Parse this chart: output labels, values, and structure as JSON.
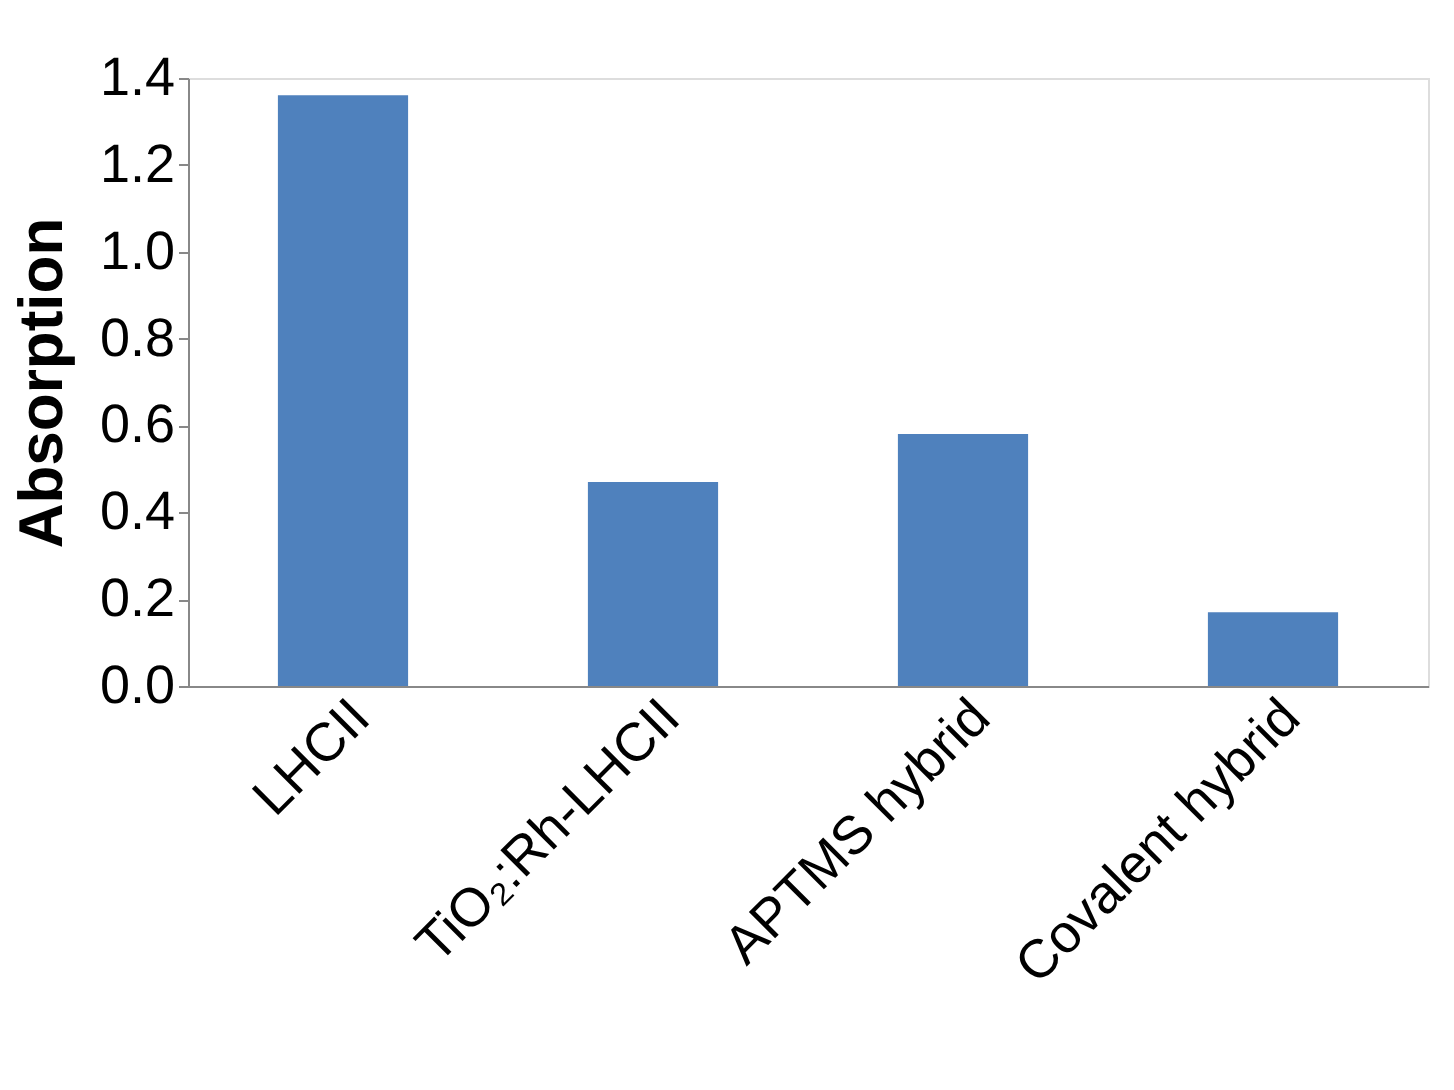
{
  "chart_data": {
    "type": "bar",
    "ylabel": "Absorption",
    "categories": [
      "LHCII",
      "TiO₂:Rh-LHCII",
      "APTMS hybrid",
      "Covalent hybrid"
    ],
    "values": [
      1.36,
      0.47,
      0.58,
      0.17
    ],
    "color": "#4f81bd",
    "ylim": [
      0,
      1.4
    ],
    "yticks": [
      {
        "value": 0,
        "label": "0.0"
      },
      {
        "value": 0.2,
        "label": "0.2"
      },
      {
        "value": 0.4,
        "label": "0.4"
      },
      {
        "value": 0.6,
        "label": "0.6"
      },
      {
        "value": 0.8,
        "label": "0.8"
      },
      {
        "value": 1.0,
        "label": "1.0"
      },
      {
        "value": 1.2,
        "label": "1.2"
      },
      {
        "value": 1.4,
        "label": "1.4"
      }
    ],
    "grid": false
  }
}
